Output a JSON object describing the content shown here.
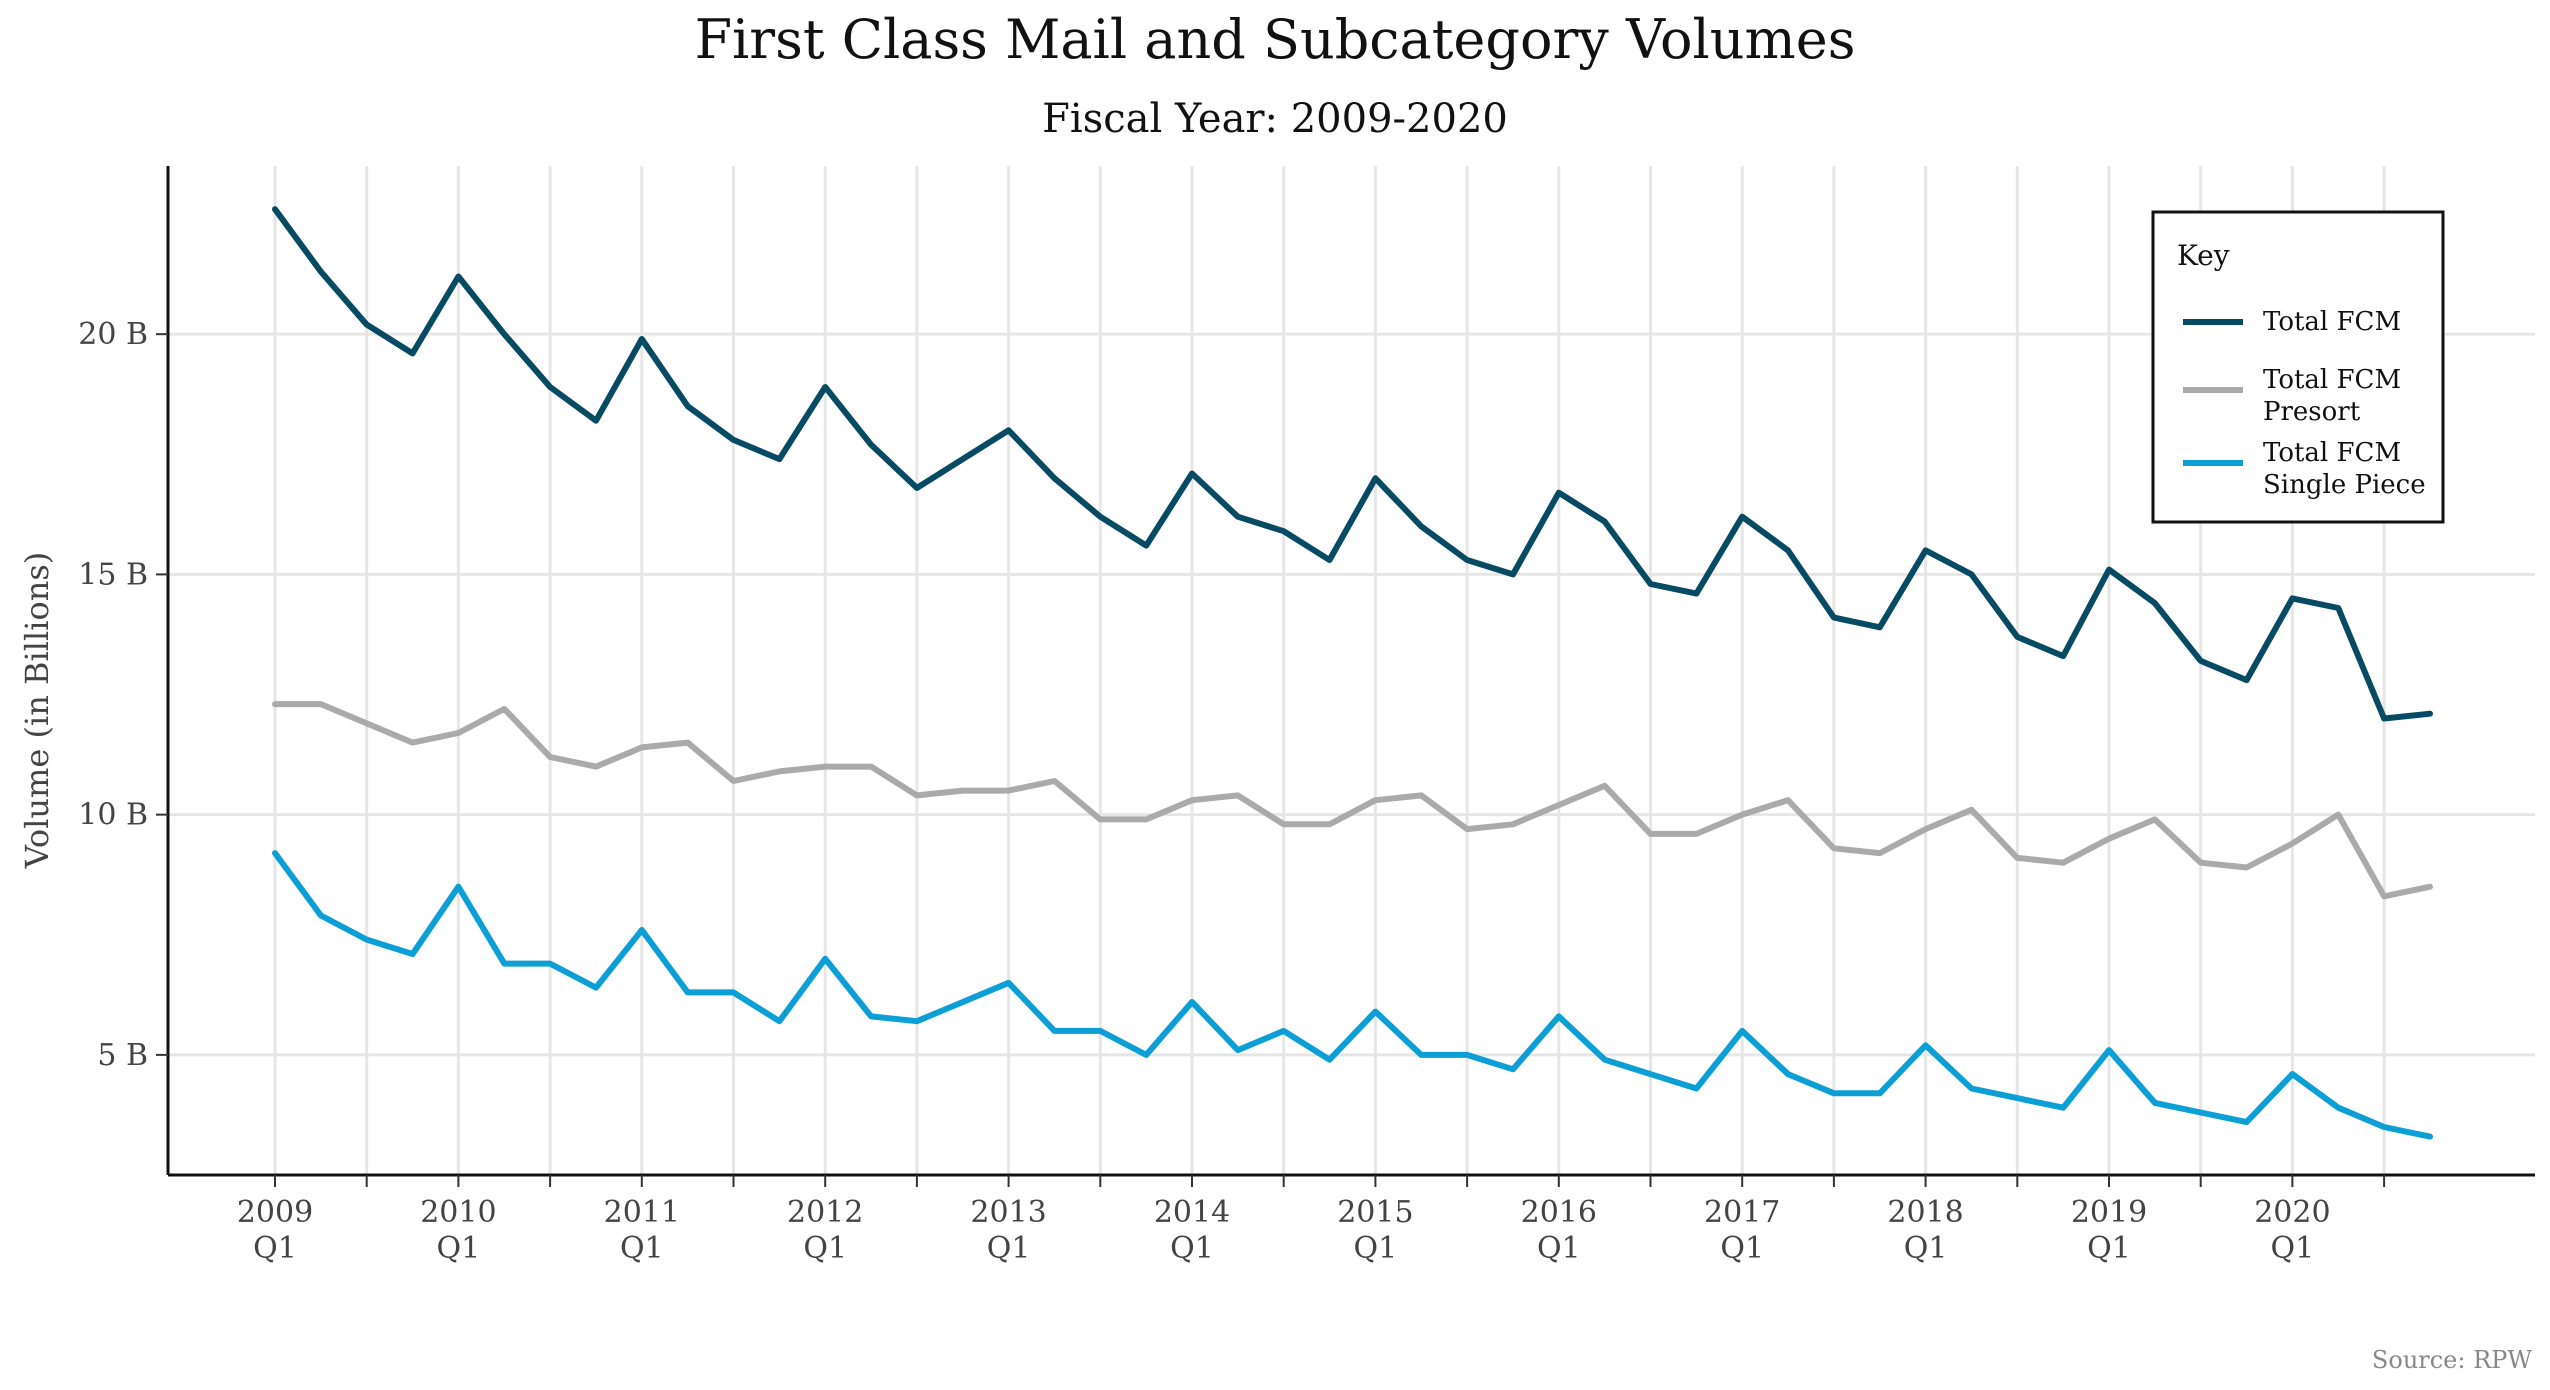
{
  "chart_data": {
    "type": "line",
    "title": "First Class Mail and Subcategory Volumes",
    "subtitle": "Fiscal Year: 2009-2020",
    "xlabel": "",
    "ylabel": "Volume (in Billions)",
    "ylim": [
      2.5,
      23.5
    ],
    "yticks": [
      5,
      10,
      15,
      20
    ],
    "ytick_labels": [
      "5 B",
      "10 B",
      "15 B",
      "20 B"
    ],
    "x_tick_labels": [
      {
        "year": "2009",
        "q": "Q1"
      },
      {
        "year": "2010",
        "q": "Q1"
      },
      {
        "year": "2011",
        "q": "Q1"
      },
      {
        "year": "2012",
        "q": "Q1"
      },
      {
        "year": "2013",
        "q": "Q1"
      },
      {
        "year": "2014",
        "q": "Q1"
      },
      {
        "year": "2015",
        "q": "Q1"
      },
      {
        "year": "2016",
        "q": "Q1"
      },
      {
        "year": "2017",
        "q": "Q1"
      },
      {
        "year": "2018",
        "q": "Q1"
      },
      {
        "year": "2019",
        "q": "Q1"
      },
      {
        "year": "2020",
        "q": "Q1"
      }
    ],
    "x": [
      "2009 Q1",
      "2009 Q2",
      "2009 Q3",
      "2009 Q4",
      "2010 Q1",
      "2010 Q2",
      "2010 Q3",
      "2010 Q4",
      "2011 Q1",
      "2011 Q2",
      "2011 Q3",
      "2011 Q4",
      "2012 Q1",
      "2012 Q2",
      "2012 Q3",
      "2012 Q4",
      "2013 Q1",
      "2013 Q2",
      "2013 Q3",
      "2013 Q4",
      "2014 Q1",
      "2014 Q2",
      "2014 Q3",
      "2014 Q4",
      "2015 Q1",
      "2015 Q2",
      "2015 Q3",
      "2015 Q4",
      "2016 Q1",
      "2016 Q2",
      "2016 Q3",
      "2016 Q4",
      "2017 Q1",
      "2017 Q2",
      "2017 Q3",
      "2017 Q4",
      "2018 Q1",
      "2018 Q2",
      "2018 Q3",
      "2018 Q4",
      "2019 Q1",
      "2019 Q2",
      "2019 Q3",
      "2019 Q4",
      "2020 Q1",
      "2020 Q2",
      "2020 Q3",
      "2020 Q4"
    ],
    "grid": true,
    "legend_title": "Key",
    "legend_position": "top-right",
    "series": [
      {
        "name": "Total FCM",
        "color": "#064a63",
        "values": [
          22.6,
          21.3,
          20.2,
          19.6,
          21.2,
          20.0,
          18.9,
          18.2,
          19.9,
          18.5,
          17.8,
          17.4,
          18.9,
          17.7,
          16.8,
          17.4,
          18.0,
          17.0,
          16.2,
          15.6,
          17.1,
          16.2,
          15.9,
          15.3,
          17.0,
          16.0,
          15.3,
          15.0,
          16.7,
          16.1,
          14.8,
          14.6,
          16.2,
          15.5,
          14.1,
          13.9,
          15.5,
          15.0,
          13.7,
          13.3,
          15.1,
          14.4,
          13.2,
          12.8,
          14.5,
          14.3,
          12.0,
          12.1
        ]
      },
      {
        "name": "Total FCM Presort",
        "label_lines": [
          "Total FCM",
          "Presort"
        ],
        "color": "#aaaaaa",
        "values": [
          12.3,
          12.3,
          11.9,
          11.5,
          11.7,
          12.2,
          11.2,
          11.0,
          11.4,
          11.5,
          10.7,
          10.9,
          11.0,
          11.0,
          10.4,
          10.5,
          10.5,
          10.7,
          9.9,
          9.9,
          10.3,
          10.4,
          9.8,
          9.8,
          10.3,
          10.4,
          9.7,
          9.8,
          10.2,
          10.6,
          9.6,
          9.6,
          10.0,
          10.3,
          9.3,
          9.2,
          9.7,
          10.1,
          9.1,
          9.0,
          9.5,
          9.9,
          9.0,
          8.9,
          9.4,
          10.0,
          8.3,
          8.5
        ]
      },
      {
        "name": "Total FCM Single Piece",
        "label_lines": [
          "Total FCM",
          "Single Piece"
        ],
        "color": "#0b9fd6",
        "values": [
          9.2,
          7.9,
          7.4,
          7.1,
          8.5,
          6.9,
          6.9,
          6.4,
          7.6,
          6.3,
          6.3,
          5.7,
          7.0,
          5.8,
          5.7,
          6.1,
          6.5,
          5.5,
          5.5,
          5.0,
          6.1,
          5.1,
          5.5,
          4.9,
          5.9,
          5.0,
          5.0,
          4.7,
          5.8,
          4.9,
          4.6,
          4.3,
          5.5,
          4.6,
          4.2,
          4.2,
          5.2,
          4.3,
          4.1,
          3.9,
          5.1,
          4.0,
          3.8,
          3.6,
          4.6,
          3.9,
          3.5,
          3.3
        ]
      }
    ],
    "source": "Source: RPW"
  }
}
